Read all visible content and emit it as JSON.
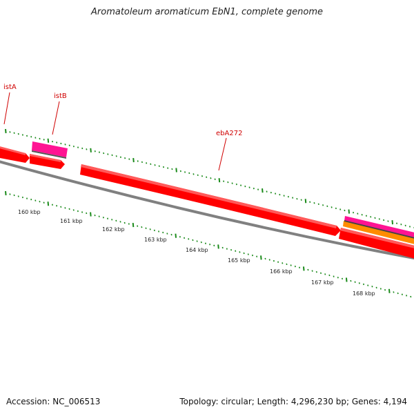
{
  "title": "Aromatoleum aromaticum EbN1, complete genome",
  "footer": {
    "accession": "Accession: NC_006513",
    "summary": "Topology: circular; Length: 4,296,230 bp; Genes: 4,194"
  },
  "scale_labels": [
    "160 kbp",
    "161 kbp",
    "162 kbp",
    "163 kbp",
    "164 kbp",
    "165 kbp",
    "166 kbp",
    "167 kbp",
    "168 kbp"
  ],
  "gene_labels": [
    "istA",
    "istB",
    "ebA272"
  ],
  "colors": {
    "backbone": "#808080",
    "cds": "#ff0000",
    "pink_feature": "#ff1493",
    "orange_feature": "#ff8c00",
    "ticks": "#1a8a1a",
    "label": "#d00000"
  }
}
